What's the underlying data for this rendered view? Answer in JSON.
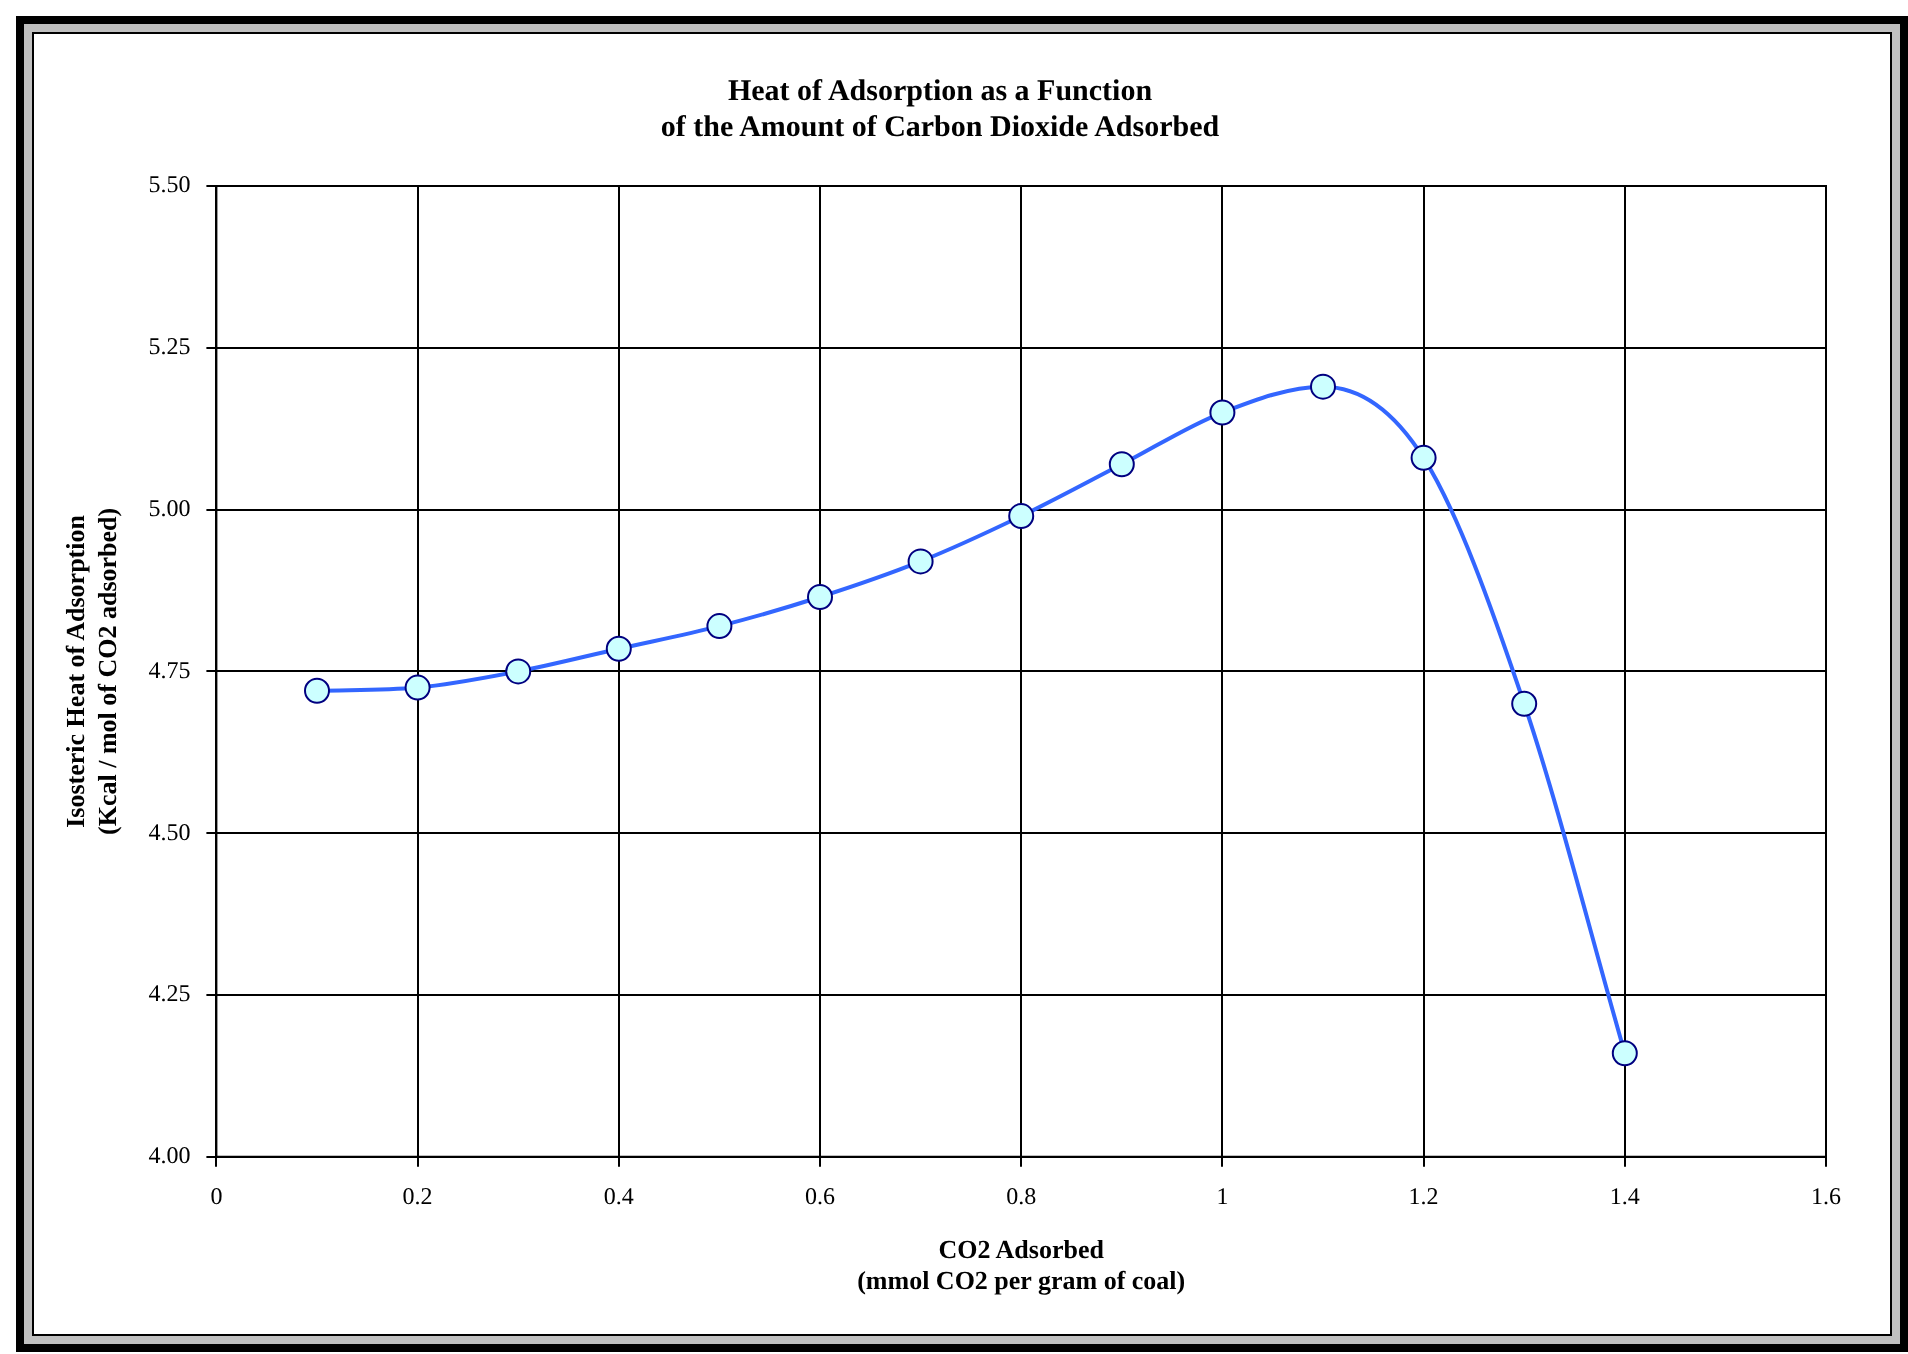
{
  "chart_data": {
    "type": "line",
    "title": "Heat of Adsorption as a Function\nof the Amount of Carbon Dioxide Adsorbed",
    "xlabel": "CO2 Adsorbed\n(mmol CO2 per gram of coal)",
    "ylabel": "Isosteric Heat of Adsorption\n(Kcal / mol of CO2 adsorbed)",
    "x": [
      0.1,
      0.2,
      0.3,
      0.4,
      0.5,
      0.6,
      0.7,
      0.8,
      0.9,
      1.0,
      1.1,
      1.2,
      1.3,
      1.4
    ],
    "series": [
      {
        "color": "#3366ff",
        "values": [
          4.72,
          4.725,
          4.75,
          4.785,
          4.82,
          4.865,
          4.92,
          4.99,
          5.07,
          5.15,
          5.19,
          5.08,
          4.7,
          4.16
        ]
      }
    ],
    "xlim": [
      0,
      1.6
    ],
    "xticks": [
      0,
      0.2,
      0.4,
      0.6,
      0.8,
      1,
      1.2,
      1.4,
      1.6
    ],
    "ylim": [
      4.0,
      5.5
    ],
    "yticks": [
      {
        "value": 4.0,
        "label": "4.00"
      },
      {
        "value": 4.25,
        "label": "4.25"
      },
      {
        "value": 4.5,
        "label": "4.50"
      },
      {
        "value": 4.75,
        "label": "4.75"
      },
      {
        "value": 5.0,
        "label": "5.00"
      },
      {
        "value": 5.25,
        "label": "5.25"
      },
      {
        "value": 5.5,
        "label": "5.50"
      }
    ],
    "grid": true,
    "legend": false,
    "marker": "circle",
    "line_style": "solid"
  }
}
